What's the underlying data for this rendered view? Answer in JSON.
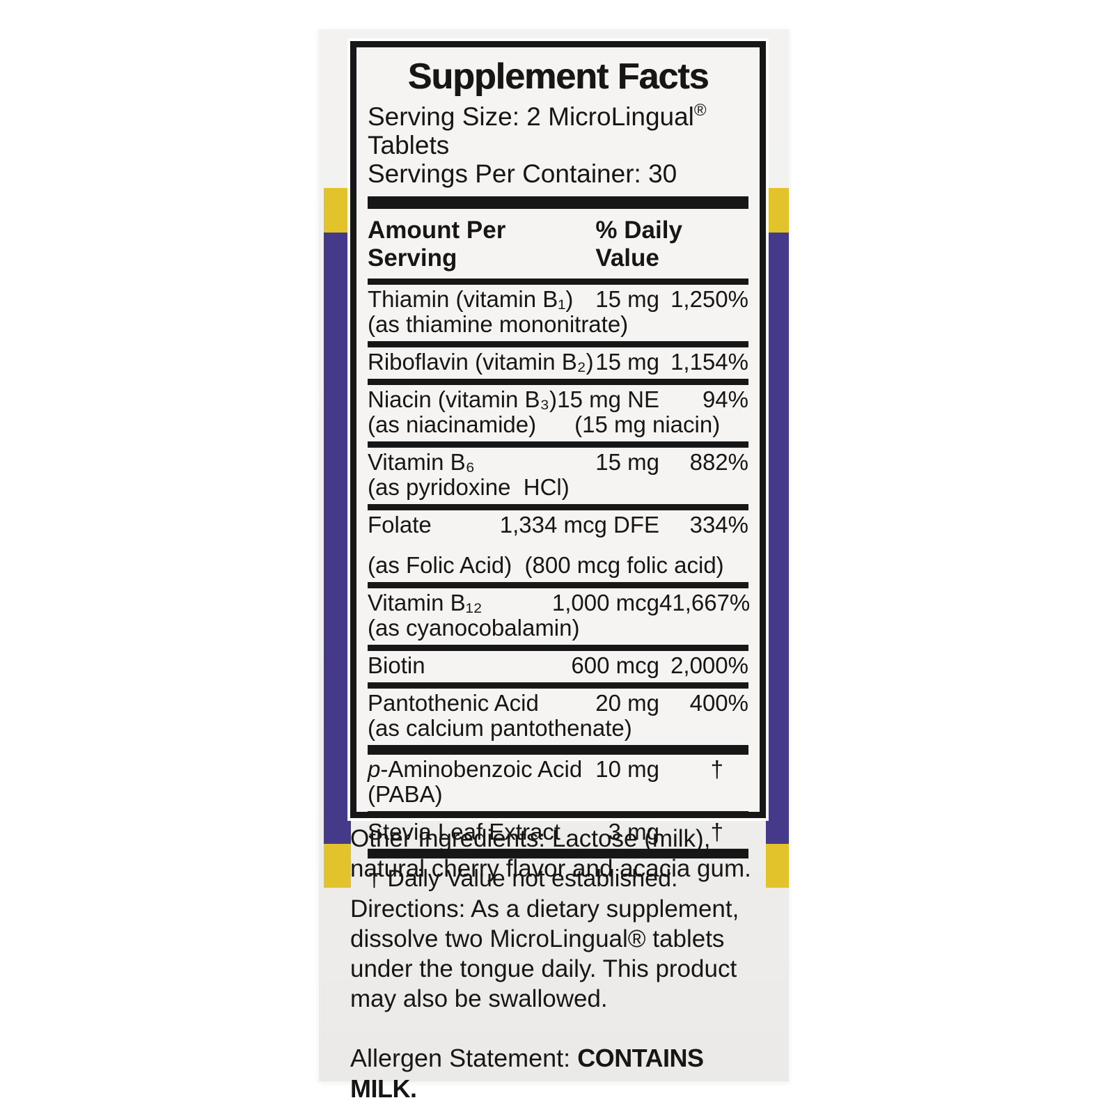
{
  "colors": {
    "purple": "#453a8a",
    "yellow": "#e3c32c",
    "panel_black": "#171717",
    "box_face": "#f1f0ee"
  },
  "panel": {
    "title": "Supplement Facts",
    "serving_size_prefix": "Serving Size: 2 MicroLingual",
    "registered_mark": "®",
    "serving_size_suffix": " Tablets",
    "servings_per_container": "Servings Per Container: 30",
    "amount_header": "Amount Per Serving",
    "dv_header": "% Daily Value",
    "rows": [
      {
        "name": "Thiamin (vitamin B₁)",
        "amount": "15 mg",
        "pct": "1,250%",
        "sub": "(as thiamine mononitrate)"
      },
      {
        "name": "Riboflavin (vitamin B₂)",
        "amount": "15 mg",
        "pct": "1,154%"
      },
      {
        "name": "Niacin (vitamin B₃)",
        "amount": "15 mg NE",
        "pct": "94%",
        "sub": "(as niacinamide)      (15 mg niacin)"
      },
      {
        "name": "Vitamin B₆",
        "amount": "15 mg",
        "pct": "882%",
        "sub": "(as pyridoxine  HCl)"
      },
      {
        "name": "Folate",
        "amount": "1,334 mcg DFE",
        "pct": "334%",
        "sub": "(as Folic Acid)  (800 mcg folic acid)"
      },
      {
        "name": "Vitamin B₁₂",
        "amount": "1,000 mcg",
        "pct": "41,667%",
        "sub": "(as cyanocobalamin)"
      },
      {
        "name": "Biotin",
        "amount": "600 mcg",
        "pct": "2,000%"
      },
      {
        "name": "Pantothenic Acid",
        "amount": "20 mg",
        "pct": "400%",
        "sub": "(as calcium pantothenate)"
      },
      {
        "name_it": "p",
        "name_rest": "-Aminobenzoic Acid",
        "amount": "10 mg",
        "pct": "†",
        "sub": "(PABA)"
      },
      {
        "name": "Stevia Leaf Extract",
        "amount": "3 mg",
        "pct": "†"
      }
    ],
    "footnote": "† Daily Value not established."
  },
  "back_panel": {
    "other_ingredients": "Other Ingredients: Lactose (milk), natural cherry flavor and acacia gum.",
    "directions": "Directions: As a dietary supplement, dissolve two MicroLingual® tablets under the tongue daily. This product may also be swallowed.",
    "allergen_label": "Allergen Statement: ",
    "allergen_value": "CONTAINS MILK."
  }
}
